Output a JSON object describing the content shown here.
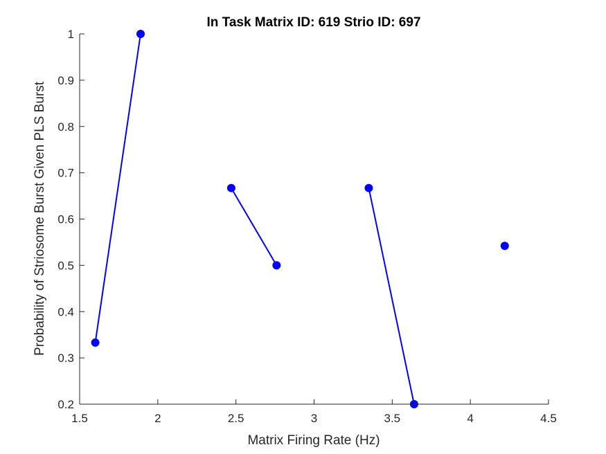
{
  "chart_data": {
    "type": "line",
    "title": "In Task Matrix ID: 619 Strio ID: 697",
    "xlabel": "Matrix Firing Rate (Hz)",
    "ylabel": "Probability of Striosome Burst Given PLS Burst",
    "xlim": [
      1.5,
      4.5
    ],
    "ylim": [
      0.2,
      1.0
    ],
    "xticks": [
      1.5,
      2,
      2.5,
      3,
      3.5,
      4,
      4.5
    ],
    "xtick_labels": [
      "1.5",
      "2",
      "2.5",
      "3",
      "3.5",
      "4",
      "4.5"
    ],
    "yticks": [
      0.2,
      0.3,
      0.4,
      0.5,
      0.6,
      0.7,
      0.8,
      0.9,
      1.0
    ],
    "ytick_labels": [
      "0.2",
      "0.3",
      "0.4",
      "0.5",
      "0.6",
      "0.7",
      "0.8",
      "0.9",
      "1"
    ],
    "grid": false,
    "series": [
      {
        "x": [
          1.6,
          1.89
        ],
        "y": [
          0.333,
          1.0
        ]
      },
      {
        "x": [
          2.47,
          2.76
        ],
        "y": [
          0.667,
          0.5
        ]
      },
      {
        "x": [
          3.35,
          3.64
        ],
        "y": [
          0.667,
          0.2
        ]
      },
      {
        "x": [
          4.22
        ],
        "y": [
          0.542
        ]
      }
    ],
    "color": "#0000ff",
    "axis_color": "#262626"
  }
}
